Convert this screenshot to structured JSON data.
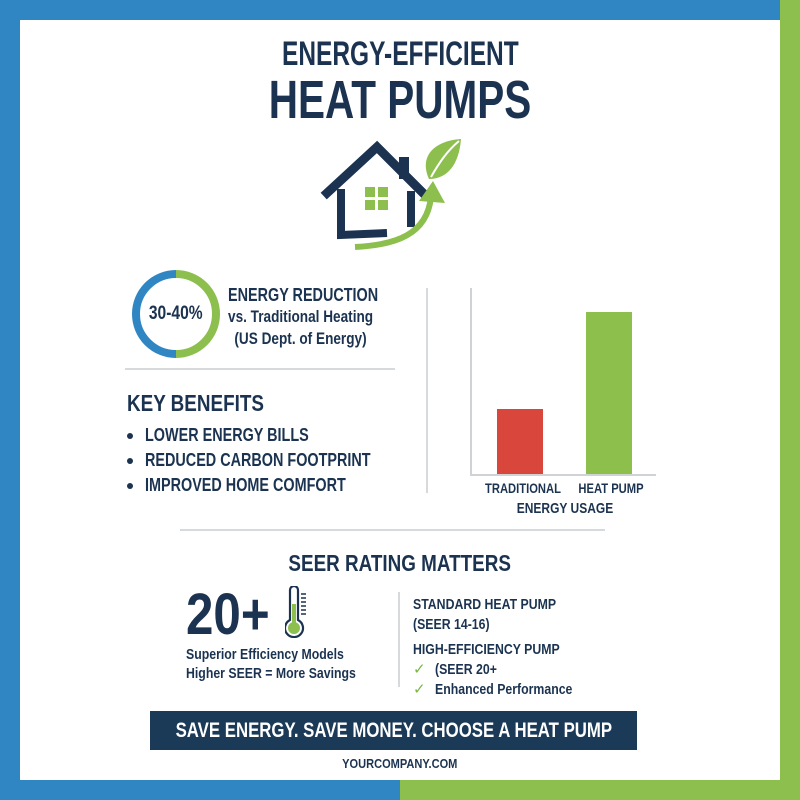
{
  "title": {
    "line1": "ENERGY-EFFICIENT",
    "line2": "HEAT PUMPS"
  },
  "logo": {
    "icon": "house-leaf-arrow-icon"
  },
  "colors": {
    "navy": "#1b3350",
    "blue": "#2f86c3",
    "green": "#8dbf4e",
    "red": "#d9473c",
    "cta_bg": "#1b3a58"
  },
  "reduction": {
    "ring_value": "30-40%",
    "heading": "ENERGY REDUCTION",
    "subline": "vs. Traditional Heating",
    "source": "(US Dept. of Energy)"
  },
  "benefits": {
    "title": "KEY BENEFITS",
    "items": [
      "LOWER ENERGY BILLS",
      "REDUCED CARBON FOOTPRINT",
      "IMPROVED HOME COMFORT"
    ]
  },
  "chart_data": {
    "type": "bar",
    "title": "",
    "categories": [
      "TRADITIONAL",
      "HEAT PUMP"
    ],
    "values": [
      40,
      100
    ],
    "colors": [
      "#d9473c",
      "#8cbf4c"
    ],
    "xlabel": "ENERGY USAGE",
    "ylabel": "",
    "ylim": [
      0,
      110
    ],
    "grid": false,
    "legend": "none",
    "note": "No axis ticks shown; values are relative bar heights estimated from pixels"
  },
  "seer": {
    "title": "SEER RATING MATTERS",
    "big_number": "20+",
    "thermometer_icon": "thermometer-icon",
    "desc_line1": "Superior Efficiency Models",
    "desc_line2": "Higher SEER = More Savings",
    "standard_label": "STANDARD HEAT PUMP",
    "standard_range": "(SEER 14-16)",
    "high_label": "HIGH-EFFICIENCY PUMP",
    "high_range": "(SEER 20+",
    "high_feature": "Enhanced Performance",
    "check_glyph": "✓"
  },
  "cta": {
    "text": "SAVE ENERGY. SAVE MONEY. CHOOSE A HEAT PUMP"
  },
  "footer": {
    "website": "YOURCOMPANY.COM"
  }
}
